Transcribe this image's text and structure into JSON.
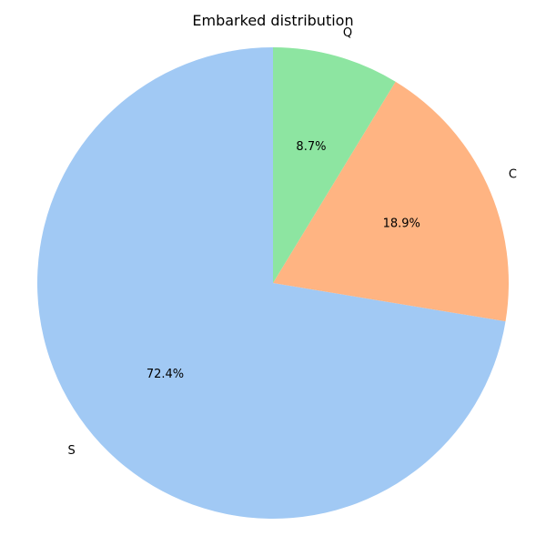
{
  "chart_data": {
    "type": "pie",
    "title": "Embarked distribution",
    "categories": [
      "S",
      "C",
      "Q"
    ],
    "values": [
      72.4,
      18.9,
      8.7
    ],
    "value_labels": [
      "72.4%",
      "18.9%",
      "8.7%"
    ],
    "colors": [
      "#a1c9f4",
      "#ffb482",
      "#8de5a1"
    ],
    "start_angle_deg": 90,
    "direction": "counterclockwise"
  }
}
